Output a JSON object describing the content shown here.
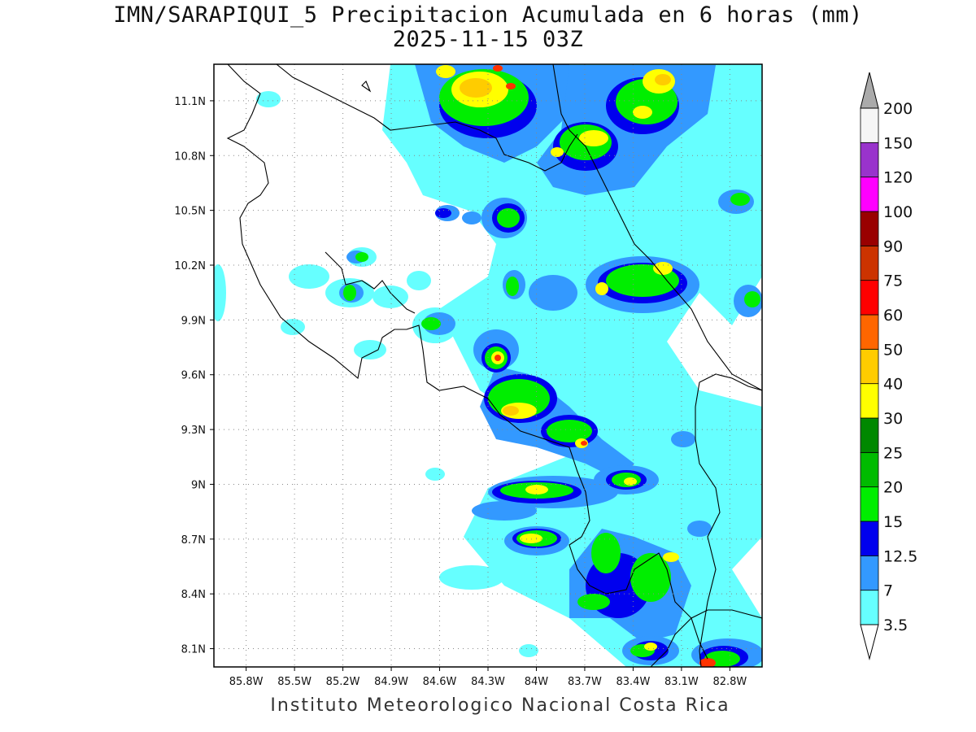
{
  "title": {
    "line1": "IMN/SARAPIQUI_5 Precipitacion Acumulada en 6 horas (mm)",
    "line2": "2025-11-15 03Z"
  },
  "footer": "Instituto Meteorologico Nacional Costa Rica",
  "map": {
    "lon_range": [
      -86.0,
      -82.6
    ],
    "lat_range": [
      8.0,
      11.3
    ],
    "lon_ticks": [
      "85.8W",
      "85.5W",
      "85.2W",
      "84.9W",
      "84.6W",
      "84.3W",
      "84W",
      "83.7W",
      "83.4W",
      "83.1W",
      "82.8W"
    ],
    "lat_ticks": [
      "11.1N",
      "10.8N",
      "10.5N",
      "10.2N",
      "9.9N",
      "9.6N",
      "9.3N",
      "9N",
      "8.7N",
      "8.4N",
      "8.1N"
    ],
    "grid": "dotted"
  },
  "colorbar": {
    "levels": [
      "3.5",
      "7",
      "12.5",
      "15",
      "20",
      "25",
      "30",
      "40",
      "50",
      "60",
      "75",
      "90",
      "100",
      "120",
      "150",
      "200"
    ],
    "colors": [
      "#66ffff",
      "#3399ff",
      "#0000ee",
      "#00ee00",
      "#00bb00",
      "#008800",
      "#ffff00",
      "#ffcc00",
      "#ff6600",
      "#ff0000",
      "#cc3300",
      "#990000",
      "#ff00ff",
      "#9933cc",
      "#f5f5f5",
      "#aaaaaa"
    ]
  },
  "colors": {
    "light": "#66ffff",
    "mid": "#3399ff",
    "dark": "#0000ee",
    "green1": "#00ee00",
    "green2": "#00bb00",
    "green3": "#008800",
    "yellow": "#ffff00",
    "orange": "#ffcc00",
    "red": "#ff3300"
  }
}
